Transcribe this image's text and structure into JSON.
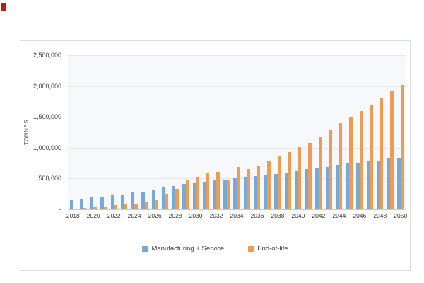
{
  "chart": {
    "y_axis": {
      "title": "TONNES",
      "tick_labels": [
        "2,500,000",
        "2,000,000",
        "1,500,000",
        "1,000,000",
        "500,000",
        "-"
      ]
    },
    "x_axis": {
      "tick_labels": [
        "2018",
        "2020",
        "2022",
        "2024",
        "2026",
        "2028",
        "2030",
        "2032",
        "2034",
        "2036",
        "2038",
        "2040",
        "2042",
        "2044",
        "2046",
        "2048",
        "2050"
      ]
    },
    "legend": [
      {
        "label": "Manufacturing + Service",
        "color": "#74a9d8"
      },
      {
        "label": "End-of-life",
        "color": "#ef9b51"
      }
    ]
  },
  "chart_data": {
    "type": "bar",
    "title": "",
    "xlabel": "",
    "ylabel": "TONNES",
    "ylim": [
      0,
      2500000
    ],
    "grid": true,
    "legend_position": "bottom",
    "categories": [
      2018,
      2019,
      2020,
      2021,
      2022,
      2023,
      2024,
      2025,
      2026,
      2027,
      2028,
      2029,
      2030,
      2031,
      2032,
      2033,
      2034,
      2035,
      2036,
      2037,
      2038,
      2039,
      2040,
      2041,
      2042,
      2043,
      2044,
      2045,
      2046,
      2047,
      2048,
      2049,
      2050
    ],
    "series": [
      {
        "name": "Manufacturing + Service",
        "color": "#74a9d8",
        "values": [
          150000,
          170000,
          195000,
          205000,
          225000,
          245000,
          272000,
          290000,
          310000,
          355000,
          380000,
          410000,
          425000,
          448000,
          465000,
          480000,
          505000,
          525000,
          540000,
          556000,
          575000,
          595000,
          615000,
          648000,
          668000,
          690000,
          726000,
          745000,
          762000,
          782000,
          795000,
          820000,
          840000
        ]
      },
      {
        "name": "End-of-life",
        "color": "#ef9b51",
        "values": [
          15000,
          25000,
          35000,
          50000,
          70000,
          80000,
          95000,
          112000,
          150000,
          255000,
          330000,
          478000,
          522000,
          580000,
          610000,
          470000,
          690000,
          655000,
          715000,
          785000,
          860000,
          930000,
          1005000,
          1080000,
          1180000,
          1283000,
          1398000,
          1490000,
          1590000,
          1695000,
          1800000,
          1910000,
          2020000
        ]
      }
    ]
  }
}
